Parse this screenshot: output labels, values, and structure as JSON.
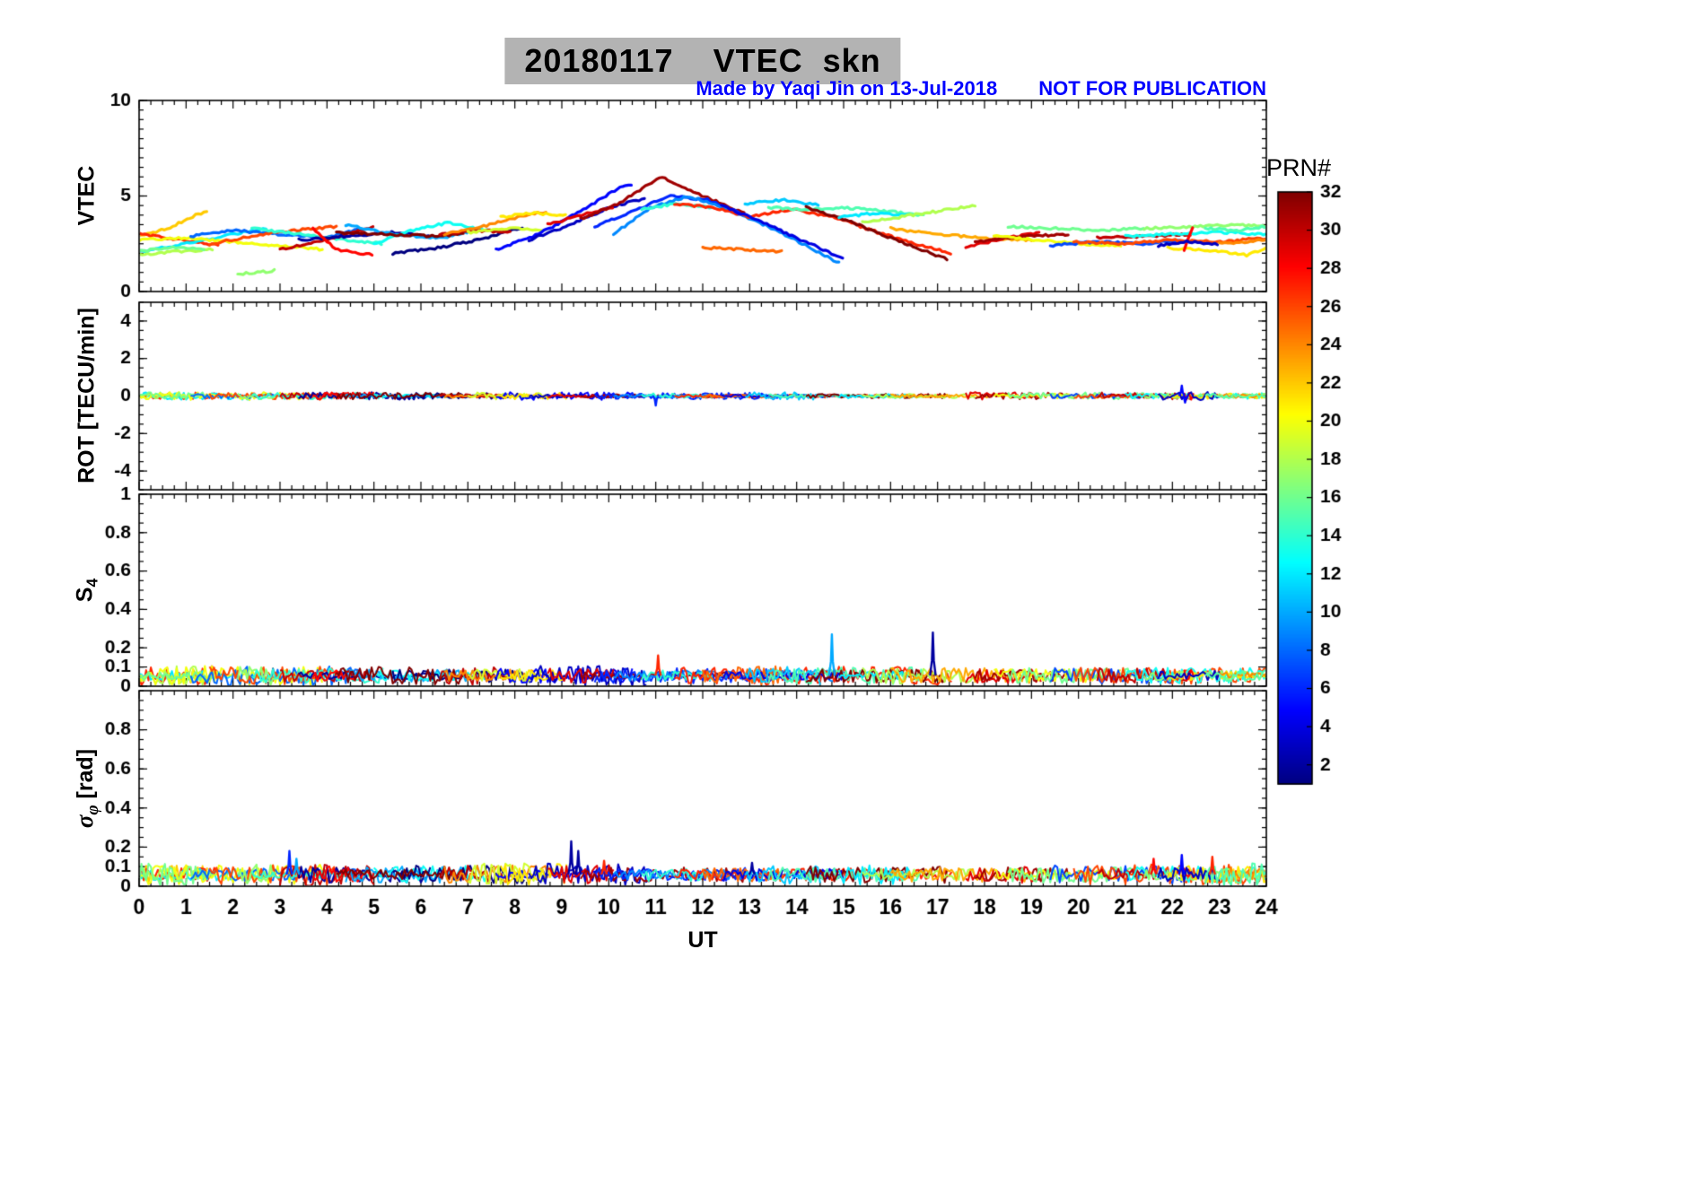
{
  "figure": {
    "title": "20180117    VTEC  skn",
    "watermark": "Made by Yaqi Jin on 13-Jul-2018",
    "notice": "NOT FOR PUBLICATION",
    "xlabel": "UT",
    "colorbar_label": "PRN#",
    "colors": {
      "title_bg": "#b3b3b3",
      "watermark": "#0000ff",
      "axis": "#000000",
      "background": "#ffffff"
    }
  },
  "labels": {
    "s4_main": "S",
    "s4_sub": "4",
    "sigma_main": "σ",
    "sigma_sub": "φ",
    "sigma_unit": " [rad]"
  },
  "chart_data": {
    "type": "line",
    "title": "20180117    VTEC  skn",
    "xlabel": "UT",
    "x_range": [
      0,
      24
    ],
    "x_ticks": [
      0,
      1,
      2,
      3,
      4,
      5,
      6,
      7,
      8,
      9,
      10,
      11,
      12,
      13,
      14,
      15,
      16,
      17,
      18,
      19,
      20,
      21,
      22,
      23,
      24
    ],
    "panels": [
      {
        "id": "vtec",
        "ylabel": "VTEC",
        "ylim": [
          0,
          10
        ],
        "yticks": [
          0,
          5,
          10
        ],
        "minor": 0.5
      },
      {
        "id": "rot",
        "ylabel": "ROT [TECU/min]",
        "ylim": [
          -5,
          5
        ],
        "yticks": [
          -4,
          -2,
          0,
          2,
          4
        ],
        "minor": 0.5,
        "band": {
          "center": 0,
          "amplitude": 0.15
        },
        "spikes": [
          {
            "t": 11.0,
            "v": -0.5,
            "p": 6
          },
          {
            "t": 22.2,
            "v": 0.55,
            "p": 5
          },
          {
            "t": 22.27,
            "v": -0.35,
            "p": 5
          }
        ]
      },
      {
        "id": "s4",
        "ylabel": "S4",
        "ylim": [
          0,
          1
        ],
        "yticks": [
          0,
          0.1,
          0.2,
          0.4,
          0.6,
          0.8,
          1
        ],
        "minor": 0.05,
        "band": {
          "center": 0.055,
          "amplitude": 0.035
        },
        "spikes": [
          {
            "t": 11.05,
            "v": 0.16,
            "p": 27
          },
          {
            "t": 14.75,
            "v": 0.27,
            "p": 10
          },
          {
            "t": 16.9,
            "v": 0.28,
            "p": 2
          }
        ]
      },
      {
        "id": "sigma",
        "ylabel": "sigma_phi [rad]",
        "ylim": [
          0,
          1
        ],
        "yticks": [
          0,
          0.1,
          0.2,
          0.4,
          0.6,
          0.8
        ],
        "minor": 0.05,
        "band": {
          "center": 0.06,
          "amplitude": 0.04
        },
        "spikes": [
          {
            "t": 3.2,
            "v": 0.18,
            "p": 6
          },
          {
            "t": 3.35,
            "v": 0.14,
            "p": 10
          },
          {
            "t": 9.2,
            "v": 0.23,
            "p": 2
          },
          {
            "t": 9.35,
            "v": 0.18,
            "p": 2
          },
          {
            "t": 9.9,
            "v": 0.13,
            "p": 27
          },
          {
            "t": 13.05,
            "v": 0.12,
            "p": 2
          },
          {
            "t": 21.6,
            "v": 0.14,
            "p": 28
          },
          {
            "t": 22.2,
            "v": 0.16,
            "p": 5
          },
          {
            "t": 22.85,
            "v": 0.15,
            "p": 27
          }
        ]
      }
    ],
    "colorbar": {
      "label": "PRN#",
      "min": 1,
      "max": 32,
      "ticks": [
        2,
        4,
        6,
        8,
        10,
        12,
        14,
        16,
        18,
        20,
        22,
        24,
        26,
        28,
        30,
        32
      ],
      "colormap": "jet"
    },
    "vtec_arcs": [
      {
        "p": 22,
        "t": [
          0,
          0.6,
          1.2,
          1.45
        ],
        "v": [
          2.9,
          3.3,
          4.0,
          4.2
        ]
      },
      {
        "p": 27,
        "t": [
          0,
          0.9,
          1.7
        ],
        "v": [
          3.0,
          2.7,
          2.4
        ]
      },
      {
        "p": 12,
        "t": [
          0,
          1,
          2,
          2.7
        ],
        "v": [
          2.1,
          2.5,
          3.0,
          3.3
        ]
      },
      {
        "p": 18,
        "t": [
          0,
          0.8,
          1.6
        ],
        "v": [
          1.9,
          2.1,
          2.2
        ]
      },
      {
        "p": 20,
        "t": [
          0,
          1,
          2,
          3,
          3.9
        ],
        "v": [
          2.7,
          2.8,
          2.6,
          2.4,
          2.2
        ]
      },
      {
        "p": 16,
        "t": [
          0,
          0.7,
          1.4
        ],
        "v": [
          2.1,
          2.3,
          2.2
        ]
      },
      {
        "p": 8,
        "t": [
          1.1,
          2,
          3,
          4,
          4.7
        ],
        "v": [
          2.9,
          3.2,
          3.0,
          2.8,
          3.3
        ]
      },
      {
        "p": 26,
        "t": [
          1.5,
          2.4,
          3.3,
          4.2
        ],
        "v": [
          2.5,
          2.9,
          3.2,
          3.4
        ]
      },
      {
        "p": 17,
        "t": [
          2.1,
          2.5,
          2.9
        ],
        "v": [
          0.9,
          1.0,
          1.1
        ]
      },
      {
        "p": 14,
        "t": [
          2.4,
          3.4,
          4.4,
          5.2
        ],
        "v": [
          3.3,
          3.0,
          2.7,
          2.5
        ]
      },
      {
        "p": 30,
        "t": [
          3,
          4,
          5
        ],
        "v": [
          2.2,
          2.7,
          3.4
        ]
      },
      {
        "p": 2,
        "t": [
          3.4,
          4.4,
          5.4,
          6.2
        ],
        "v": [
          2.7,
          2.9,
          3.1,
          2.9
        ]
      },
      {
        "p": 28,
        "t": [
          3.7,
          4.2,
          5
        ],
        "v": [
          3.3,
          2.2,
          1.9
        ]
      },
      {
        "p": 10,
        "t": [
          4.4,
          5.4,
          6.4,
          7
        ],
        "v": [
          3.5,
          3.0,
          2.8,
          3.1
        ]
      },
      {
        "p": 13,
        "t": [
          5,
          5.8,
          6.6,
          7.4
        ],
        "v": [
          2.5,
          3.2,
          3.6,
          3.2
        ]
      },
      {
        "p": 1,
        "t": [
          5.4,
          6.4,
          7.4,
          8.2
        ],
        "v": [
          2.0,
          2.3,
          2.8,
          3.4
        ]
      },
      {
        "p": 32,
        "t": [
          4.2,
          5.2,
          6.2,
          6.9
        ],
        "v": [
          3.1,
          3.0,
          2.9,
          3.0
        ]
      },
      {
        "p": 30,
        "t": [
          6.4,
          7.2,
          7.9
        ],
        "v": [
          3.0,
          3.2,
          3.1
        ]
      },
      {
        "p": 24,
        "t": [
          6.5,
          7.3,
          8.1,
          8.7
        ],
        "v": [
          3.0,
          3.4,
          3.9,
          4.2
        ]
      },
      {
        "p": 19,
        "t": [
          7,
          7.9,
          8.7
        ],
        "v": [
          3.1,
          3.3,
          3.2
        ]
      },
      {
        "p": 5,
        "t": [
          7.6,
          8.5,
          9.4,
          10.2,
          10.5
        ],
        "v": [
          2.2,
          3.0,
          4.2,
          5.4,
          5.6
        ]
      },
      {
        "p": 21,
        "t": [
          7.7,
          8.4,
          9.1
        ],
        "v": [
          3.9,
          4.1,
          4.0
        ]
      },
      {
        "p": 3,
        "t": [
          8.3,
          9.1,
          10,
          10.8
        ],
        "v": [
          2.7,
          3.4,
          4.4,
          4.9
        ]
      },
      {
        "p": 29,
        "t": [
          8.7,
          9.4,
          10.1
        ],
        "v": [
          3.5,
          4.0,
          4.4
        ]
      },
      {
        "p": 31,
        "t": [
          9.4,
          10.2,
          11.1,
          12,
          12.9
        ],
        "v": [
          3.8,
          4.6,
          6.0,
          5.0,
          4.1
        ]
      },
      {
        "p": 6,
        "t": [
          9.7,
          10.5,
          11.3,
          12.1,
          12.9,
          13.6
        ],
        "v": [
          3.4,
          4.2,
          5.0,
          4.8,
          4.0,
          3.2
        ]
      },
      {
        "p": 9,
        "t": [
          10.1,
          10.9,
          11.7,
          12.5,
          13.4,
          14.2,
          14.9
        ],
        "v": [
          3.0,
          4.4,
          5.0,
          4.3,
          3.4,
          2.4,
          1.5
        ]
      },
      {
        "p": 14,
        "t": [
          10.7,
          11.4,
          12.2
        ],
        "v": [
          4.3,
          4.6,
          4.4
        ]
      },
      {
        "p": 27,
        "t": [
          11.4,
          12.2,
          13,
          13.9,
          14.8,
          15.6,
          16.5,
          17.3
        ],
        "v": [
          4.6,
          4.4,
          3.9,
          4.3,
          3.9,
          3.2,
          2.5,
          2.0
        ]
      },
      {
        "p": 25,
        "t": [
          12,
          12.9,
          13.7
        ],
        "v": [
          2.3,
          2.2,
          2.1
        ]
      },
      {
        "p": 4,
        "t": [
          12.4,
          13.2,
          14.1,
          15
        ],
        "v": [
          4.5,
          3.7,
          2.7,
          1.7
        ]
      },
      {
        "p": 11,
        "t": [
          12.9,
          13.7,
          14.5
        ],
        "v": [
          4.6,
          4.8,
          4.5
        ]
      },
      {
        "p": 15,
        "t": [
          13.4,
          14.2,
          15,
          15.9,
          16.7
        ],
        "v": [
          4.4,
          4.3,
          4.4,
          4.2,
          4.0
        ]
      },
      {
        "p": 32,
        "t": [
          14.2,
          15.2,
          16.2,
          17.2
        ],
        "v": [
          4.4,
          3.6,
          2.6,
          1.7
        ]
      },
      {
        "p": 12,
        "t": [
          14.9,
          15.7,
          16.4
        ],
        "v": [
          3.9,
          4.1,
          4.0
        ]
      },
      {
        "p": 18,
        "t": [
          15.4,
          16.2,
          17,
          17.8
        ],
        "v": [
          3.6,
          3.9,
          4.2,
          4.5
        ]
      },
      {
        "p": 23,
        "t": [
          16,
          17,
          18,
          19
        ],
        "v": [
          3.3,
          3.0,
          2.8,
          2.7
        ]
      },
      {
        "p": 29,
        "t": [
          17.6,
          18.4,
          19.2
        ],
        "v": [
          2.3,
          2.8,
          3.1
        ]
      },
      {
        "p": 31,
        "t": [
          17.8,
          18.8,
          19.8
        ],
        "v": [
          2.6,
          2.9,
          3.0
        ]
      },
      {
        "p": 20,
        "t": [
          18.2,
          19.1,
          20,
          20.9
        ],
        "v": [
          2.9,
          2.7,
          2.5,
          2.4
        ]
      },
      {
        "p": 16,
        "t": [
          18.5,
          19.5,
          20.5,
          21.4
        ],
        "v": [
          3.4,
          3.3,
          3.2,
          3.3
        ]
      },
      {
        "p": 7,
        "t": [
          19.4,
          20.4,
          21.4,
          22.2
        ],
        "v": [
          2.4,
          2.6,
          2.5,
          2.7
        ]
      },
      {
        "p": 26,
        "t": [
          19.9,
          21,
          22,
          23,
          24
        ],
        "v": [
          2.6,
          2.5,
          2.7,
          2.6,
          2.8
        ]
      },
      {
        "p": 30,
        "t": [
          20.4,
          21.4,
          22.4
        ],
        "v": [
          2.8,
          2.9,
          3.0
        ]
      },
      {
        "p": 13,
        "t": [
          21,
          22,
          23,
          24
        ],
        "v": [
          2.9,
          3.0,
          3.1,
          3.0
        ]
      },
      {
        "p": 17,
        "t": [
          21.4,
          22.4,
          23.4,
          24
        ],
        "v": [
          3.3,
          3.4,
          3.5,
          3.4
        ]
      },
      {
        "p": 21,
        "t": [
          21.9,
          22.9,
          23.6,
          24
        ],
        "v": [
          2.3,
          2.1,
          1.9,
          2.3
        ]
      },
      {
        "p": 28,
        "t": [
          22.25,
          22.45
        ],
        "v": [
          2.2,
          3.5
        ]
      },
      {
        "p": 3,
        "t": [
          21.7,
          22.3,
          23
        ],
        "v": [
          2.4,
          2.6,
          2.5
        ]
      },
      {
        "p": 24,
        "t": [
          23,
          23.5,
          24
        ],
        "v": [
          2.5,
          2.6,
          2.7
        ]
      },
      {
        "p": 15,
        "t": [
          22.7,
          23.4,
          24
        ],
        "v": [
          3.3,
          3.2,
          3.4
        ]
      }
    ]
  }
}
